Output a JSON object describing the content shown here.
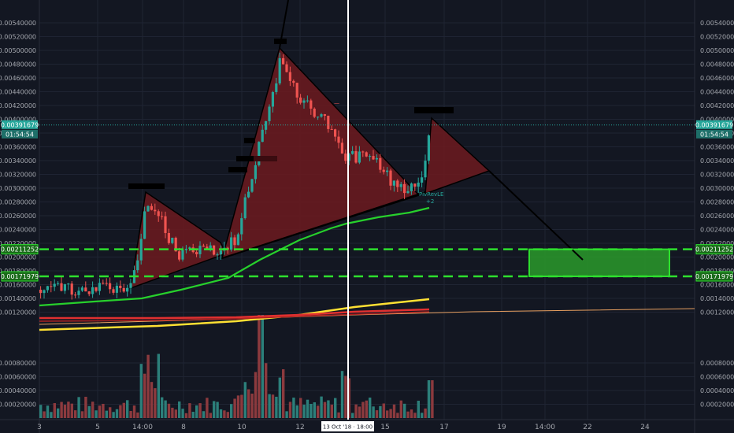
{
  "chart_data": {
    "type": "candlestick",
    "y_tick_labels": [
      "0.00540000",
      "0.00520000",
      "0.00500000",
      "0.00480000",
      "0.00460000",
      "0.00440000",
      "0.00420000",
      "0.00400000",
      "0.00380000",
      "0.00360000",
      "0.00340000",
      "0.00320000",
      "0.00300000",
      "0.00280000",
      "0.00260000",
      "0.00240000",
      "0.00220000",
      "0.00200000",
      "0.00180000",
      "0.00160000",
      "0.00140000",
      "0.00120000",
      "0.00080000",
      "0.00060000",
      "0.00040000",
      "0.00020000"
    ],
    "x_tick_labels": [
      "3",
      "5",
      "14:00",
      "8",
      "10",
      "12",
      "15",
      "17",
      "19",
      "14:00",
      "22",
      "24"
    ],
    "price_ticks": [
      0.0054,
      0.0052,
      0.005,
      0.0048,
      0.0046,
      0.0044,
      0.0042,
      0.004,
      0.0038,
      0.0036,
      0.0034,
      0.0032,
      0.003,
      0.0028,
      0.0026,
      0.0024,
      0.0022,
      0.002,
      0.0018,
      0.0016,
      0.0014,
      0.0012
    ],
    "volume_ticks": [
      0.0008,
      0.0006,
      0.0004,
      0.0002
    ],
    "last_price": {
      "label": "0.00391679",
      "value": 0.00391679,
      "countdown": "01:54:54"
    },
    "crosshair": {
      "label": "13 Oct '18 · 18:00"
    },
    "levels": [
      {
        "label": "0.00211252",
        "value": 0.00211252
      },
      {
        "label": "0.00171979",
        "value": 0.00171979
      }
    ],
    "target_zone": {
      "low": 0.00171979,
      "high": 0.00211252
    },
    "annotations": [
      {
        "text": "PivRevLE",
        "color": "#26a69a"
      },
      {
        "text": "+2",
        "color": "#26a69a"
      },
      {
        "text": "—",
        "color": "#ef5350"
      }
    ],
    "colors": {
      "background": "#131722",
      "up_candle": "#26a69a",
      "down_candle": "#ef5350",
      "triangle_fill": "#6d1a1f",
      "level_line": "#2ee02e",
      "zone_fill": "#2a9a2a",
      "ma_green": "#27d02c",
      "ma_yellow": "#ffe033",
      "ma_red": "#e03030",
      "ma_orange": "#e8a060",
      "crosshair": "#ffffff",
      "last_price": "#26a69a"
    }
  }
}
